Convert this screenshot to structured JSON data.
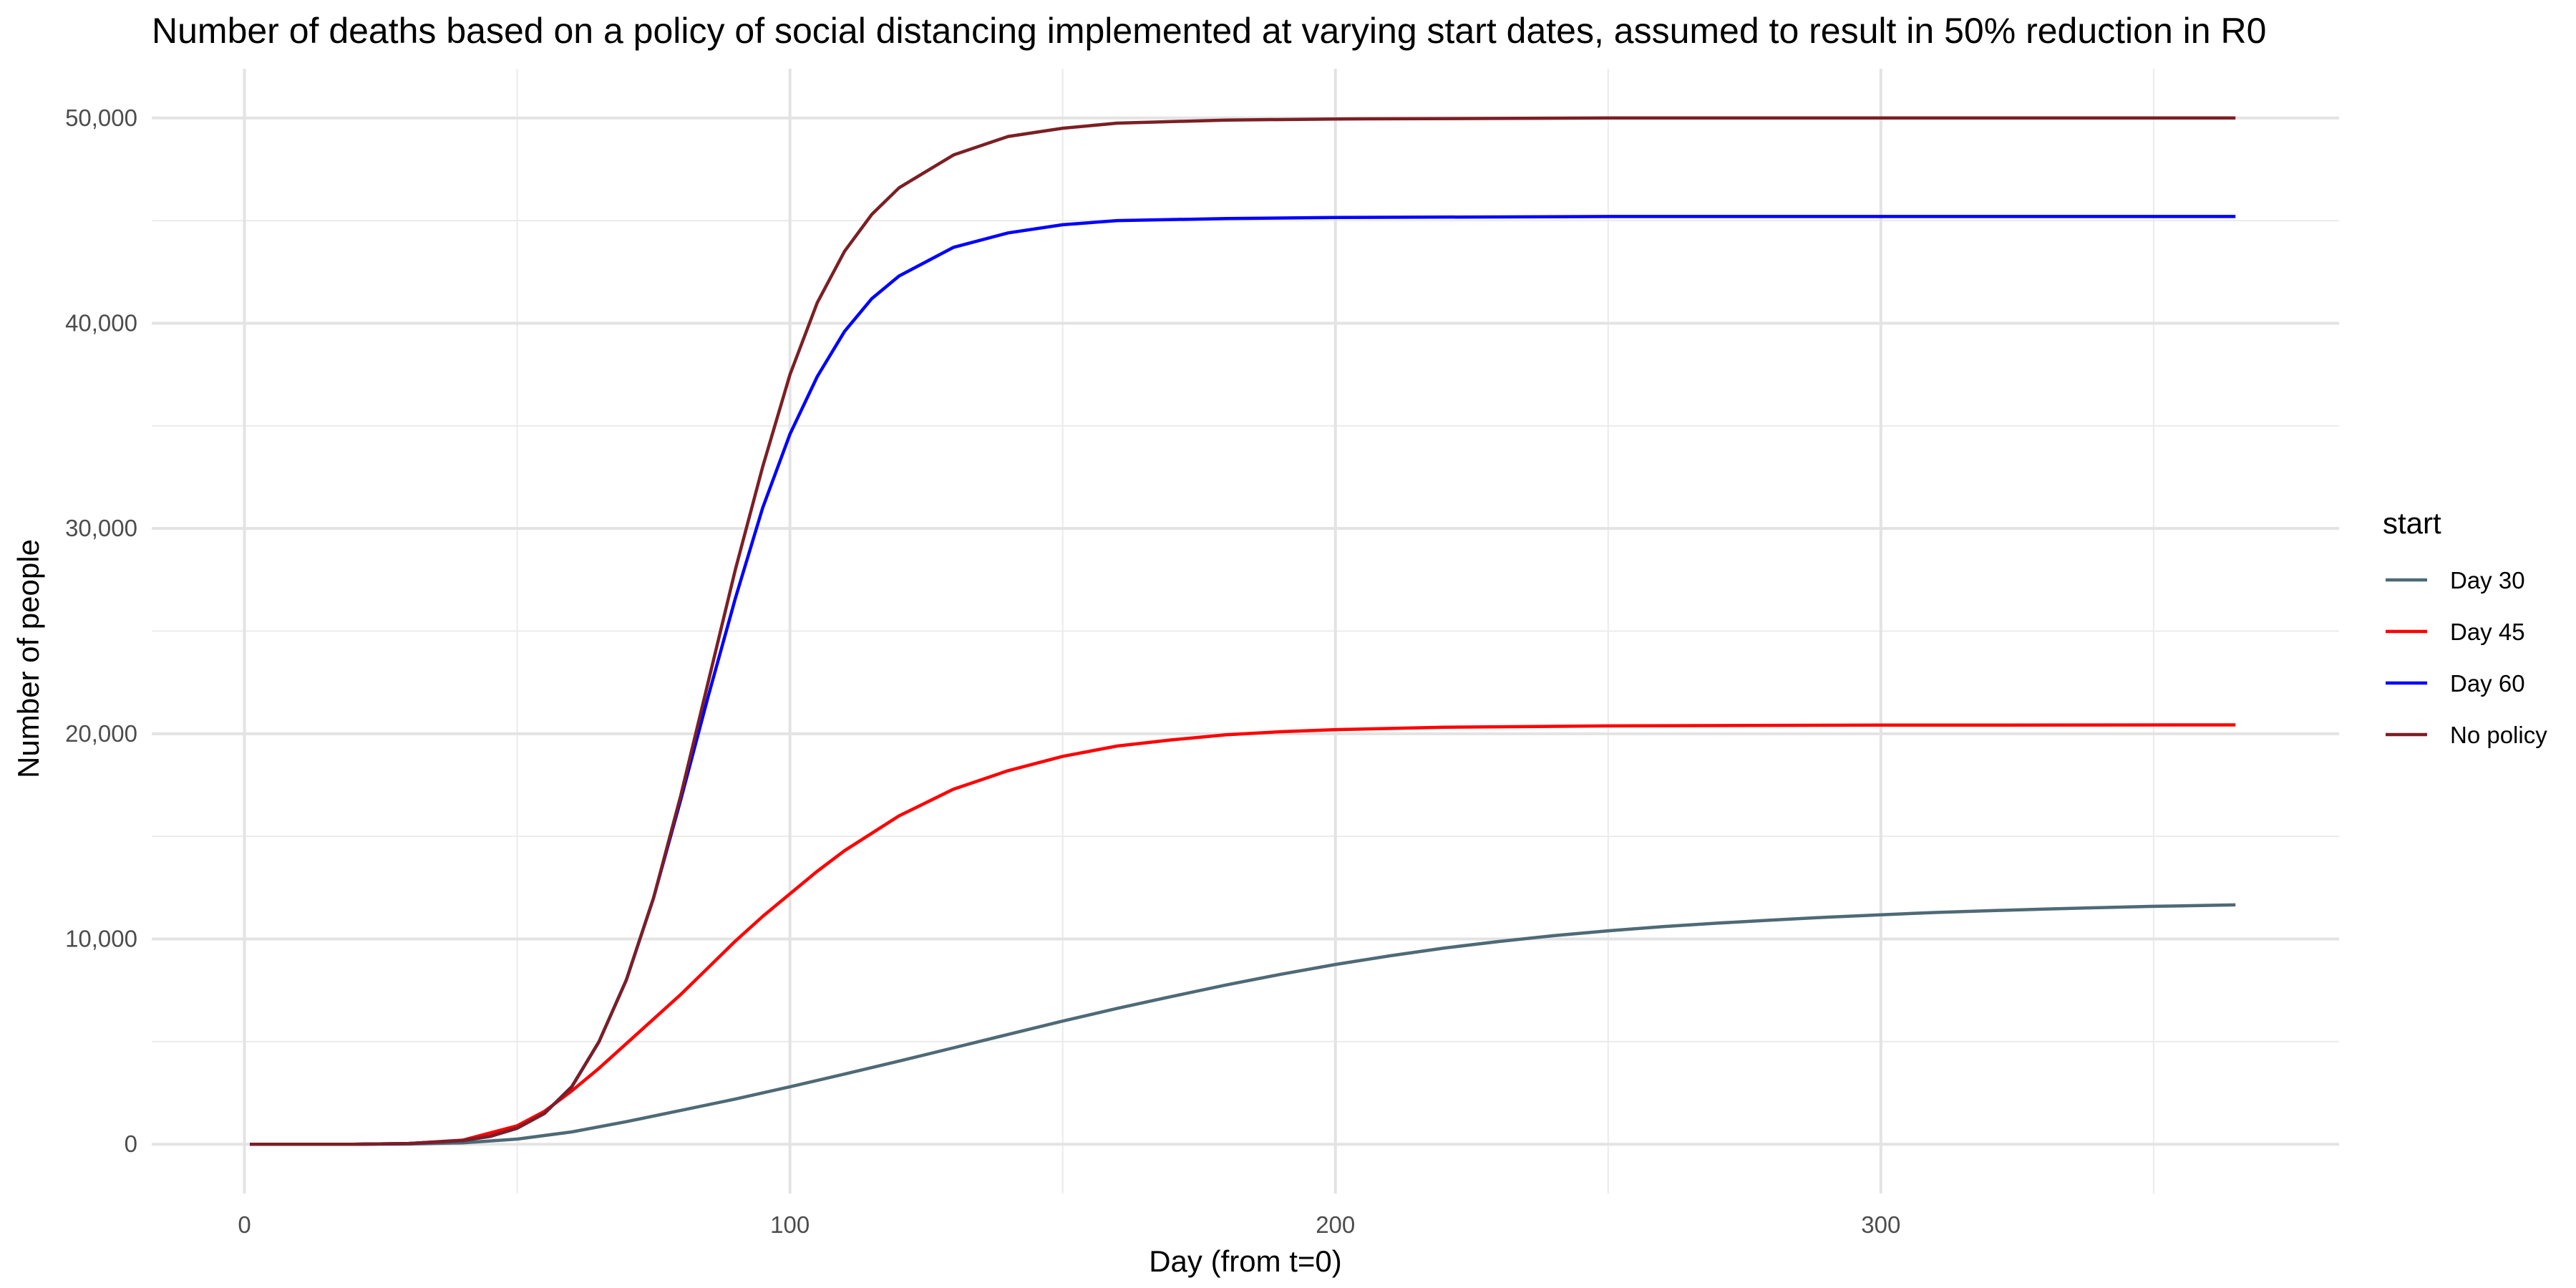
{
  "chart_data": {
    "type": "line",
    "title": "Number of deaths based on a policy of social distancing implemented at varying start dates, assumed to result in 50% reduction in R0",
    "xlabel": "Day (from t=0)",
    "ylabel": "Number of people",
    "xlim": [
      -17,
      384
    ],
    "ylim": [
      -2400,
      52400
    ],
    "x_major_ticks": [
      0,
      100,
      200,
      300
    ],
    "x_tick_labels": [
      "0",
      "100",
      "200",
      "300"
    ],
    "x_minor_ticks": [
      50,
      150,
      250,
      350
    ],
    "y_major_ticks": [
      0,
      10000,
      20000,
      30000,
      40000,
      50000
    ],
    "y_tick_labels": [
      "0",
      "10,000",
      "20,000",
      "30,000",
      "40,000",
      "50,000"
    ],
    "y_minor_ticks": [
      5000,
      15000,
      25000,
      35000,
      45000
    ],
    "grid": true,
    "legend": {
      "title": "start",
      "position": "right"
    },
    "series": [
      {
        "name": "Day 30",
        "color": "#4e6a76",
        "points": [
          [
            1,
            0
          ],
          [
            20,
            0
          ],
          [
            30,
            10
          ],
          [
            40,
            70
          ],
          [
            50,
            250
          ],
          [
            60,
            600
          ],
          [
            70,
            1100
          ],
          [
            80,
            1650
          ],
          [
            90,
            2200
          ],
          [
            100,
            2800
          ],
          [
            110,
            3420
          ],
          [
            120,
            4050
          ],
          [
            130,
            4700
          ],
          [
            140,
            5350
          ],
          [
            150,
            6000
          ],
          [
            160,
            6620
          ],
          [
            170,
            7200
          ],
          [
            180,
            7760
          ],
          [
            190,
            8280
          ],
          [
            200,
            8760
          ],
          [
            210,
            9180
          ],
          [
            220,
            9560
          ],
          [
            230,
            9880
          ],
          [
            240,
            10160
          ],
          [
            250,
            10400
          ],
          [
            260,
            10600
          ],
          [
            270,
            10770
          ],
          [
            280,
            10920
          ],
          [
            290,
            11060
          ],
          [
            300,
            11180
          ],
          [
            310,
            11290
          ],
          [
            320,
            11380
          ],
          [
            330,
            11460
          ],
          [
            340,
            11530
          ],
          [
            350,
            11590
          ],
          [
            365,
            11660
          ]
        ]
      },
      {
        "name": "Day 45",
        "color": "#ff0000",
        "points": [
          [
            1,
            0
          ],
          [
            20,
            0
          ],
          [
            30,
            30
          ],
          [
            40,
            200
          ],
          [
            50,
            900
          ],
          [
            55,
            1600
          ],
          [
            60,
            2600
          ],
          [
            65,
            3700
          ],
          [
            70,
            4900
          ],
          [
            75,
            6100
          ],
          [
            80,
            7300
          ],
          [
            85,
            8600
          ],
          [
            90,
            9900
          ],
          [
            95,
            11100
          ],
          [
            100,
            12200
          ],
          [
            105,
            13300
          ],
          [
            110,
            14300
          ],
          [
            120,
            16000
          ],
          [
            130,
            17300
          ],
          [
            140,
            18200
          ],
          [
            150,
            18900
          ],
          [
            160,
            19400
          ],
          [
            170,
            19700
          ],
          [
            180,
            19950
          ],
          [
            190,
            20100
          ],
          [
            200,
            20200
          ],
          [
            220,
            20320
          ],
          [
            250,
            20380
          ],
          [
            300,
            20420
          ],
          [
            365,
            20430
          ]
        ]
      },
      {
        "name": "Day 60",
        "color": "#0000ff",
        "points": [
          [
            1,
            0
          ],
          [
            20,
            0
          ],
          [
            30,
            30
          ],
          [
            40,
            180
          ],
          [
            45,
            380
          ],
          [
            50,
            780
          ],
          [
            55,
            1500
          ],
          [
            60,
            2800
          ],
          [
            65,
            5000
          ],
          [
            70,
            8000
          ],
          [
            75,
            12000
          ],
          [
            80,
            16800
          ],
          [
            85,
            21800
          ],
          [
            90,
            26600
          ],
          [
            95,
            31000
          ],
          [
            100,
            34600
          ],
          [
            105,
            37400
          ],
          [
            110,
            39600
          ],
          [
            115,
            41200
          ],
          [
            120,
            42300
          ],
          [
            130,
            43700
          ],
          [
            140,
            44400
          ],
          [
            150,
            44800
          ],
          [
            160,
            45000
          ],
          [
            180,
            45100
          ],
          [
            200,
            45150
          ],
          [
            250,
            45200
          ],
          [
            300,
            45200
          ],
          [
            365,
            45200
          ]
        ]
      },
      {
        "name": "No policy",
        "color": "#7b1f24",
        "points": [
          [
            1,
            0
          ],
          [
            20,
            0
          ],
          [
            30,
            30
          ],
          [
            40,
            180
          ],
          [
            45,
            380
          ],
          [
            50,
            780
          ],
          [
            55,
            1500
          ],
          [
            60,
            2800
          ],
          [
            65,
            5000
          ],
          [
            70,
            8000
          ],
          [
            75,
            12000
          ],
          [
            80,
            17000
          ],
          [
            85,
            22500
          ],
          [
            90,
            28000
          ],
          [
            95,
            33000
          ],
          [
            100,
            37500
          ],
          [
            105,
            41000
          ],
          [
            110,
            43500
          ],
          [
            115,
            45300
          ],
          [
            120,
            46600
          ],
          [
            130,
            48200
          ],
          [
            140,
            49100
          ],
          [
            150,
            49500
          ],
          [
            160,
            49750
          ],
          [
            180,
            49900
          ],
          [
            200,
            49950
          ],
          [
            250,
            50000
          ],
          [
            300,
            50000
          ],
          [
            365,
            50000
          ]
        ]
      }
    ]
  }
}
